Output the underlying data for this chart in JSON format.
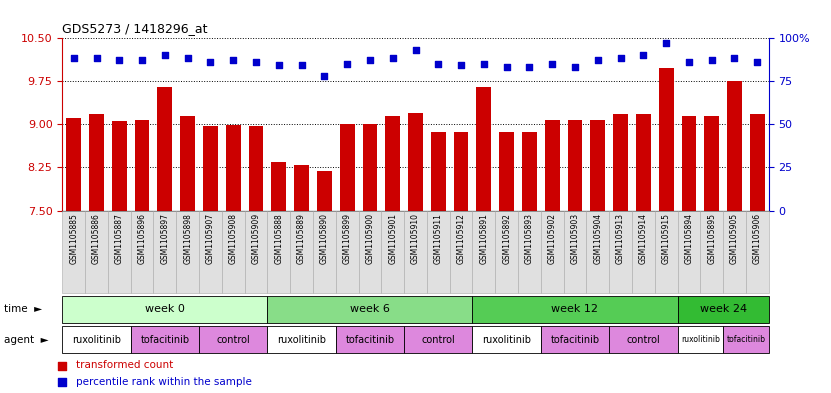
{
  "title": "GDS5273 / 1418296_at",
  "samples": [
    "GSM1105885",
    "GSM1105886",
    "GSM1105887",
    "GSM1105896",
    "GSM1105897",
    "GSM1105898",
    "GSM1105907",
    "GSM1105908",
    "GSM1105909",
    "GSM1105888",
    "GSM1105889",
    "GSM1105890",
    "GSM1105899",
    "GSM1105900",
    "GSM1105901",
    "GSM1105910",
    "GSM1105911",
    "GSM1105912",
    "GSM1105891",
    "GSM1105892",
    "GSM1105893",
    "GSM1105902",
    "GSM1105903",
    "GSM1105904",
    "GSM1105913",
    "GSM1105914",
    "GSM1105915",
    "GSM1105894",
    "GSM1105895",
    "GSM1105905",
    "GSM1105906"
  ],
  "transformed_count": [
    9.1,
    9.18,
    9.06,
    9.08,
    9.65,
    9.15,
    8.97,
    8.99,
    8.97,
    8.35,
    8.3,
    8.19,
    9.0,
    9.0,
    9.15,
    9.2,
    8.86,
    8.87,
    9.65,
    8.87,
    8.87,
    9.07,
    9.07,
    9.07,
    9.17,
    9.17,
    9.97,
    9.15,
    9.15,
    9.75,
    9.17
  ],
  "percentile_rank": [
    88,
    88,
    87,
    87,
    90,
    88,
    86,
    87,
    86,
    84,
    84,
    78,
    85,
    87,
    88,
    93,
    85,
    84,
    85,
    83,
    83,
    85,
    83,
    87,
    88,
    90,
    97,
    86,
    87,
    88,
    86
  ],
  "ylim_left": [
    7.5,
    10.5
  ],
  "ylim_right": [
    0,
    100
  ],
  "yticks_left": [
    7.5,
    8.25,
    9.0,
    9.75,
    10.5
  ],
  "yticks_right": [
    0,
    25,
    50,
    75,
    100
  ],
  "bar_color": "#cc0000",
  "dot_color": "#0000cc",
  "time_groups": [
    {
      "label": "week 0",
      "start": 0,
      "end": 8,
      "color": "#ccffcc"
    },
    {
      "label": "week 6",
      "start": 9,
      "end": 17,
      "color": "#88dd88"
    },
    {
      "label": "week 12",
      "start": 18,
      "end": 26,
      "color": "#55cc55"
    },
    {
      "label": "week 24",
      "start": 27,
      "end": 30,
      "color": "#33bb33"
    }
  ],
  "agent_spans": [
    {
      "label": "ruxolitinib",
      "start": 0,
      "end": 2,
      "color": "#ffffff"
    },
    {
      "label": "tofacitinib",
      "start": 3,
      "end": 5,
      "color": "#dd88dd"
    },
    {
      "label": "control",
      "start": 6,
      "end": 8,
      "color": "#dd88dd"
    },
    {
      "label": "ruxolitinib",
      "start": 9,
      "end": 11,
      "color": "#ffffff"
    },
    {
      "label": "tofacitinib",
      "start": 12,
      "end": 14,
      "color": "#dd88dd"
    },
    {
      "label": "control",
      "start": 15,
      "end": 17,
      "color": "#dd88dd"
    },
    {
      "label": "ruxolitinib",
      "start": 18,
      "end": 20,
      "color": "#ffffff"
    },
    {
      "label": "tofacitinib",
      "start": 21,
      "end": 23,
      "color": "#dd88dd"
    },
    {
      "label": "control",
      "start": 24,
      "end": 26,
      "color": "#dd88dd"
    },
    {
      "label": "ruxolitinib",
      "start": 27,
      "end": 28,
      "color": "#ffffff"
    },
    {
      "label": "tofacitinib",
      "start": 29,
      "end": 30,
      "color": "#dd88dd"
    }
  ]
}
